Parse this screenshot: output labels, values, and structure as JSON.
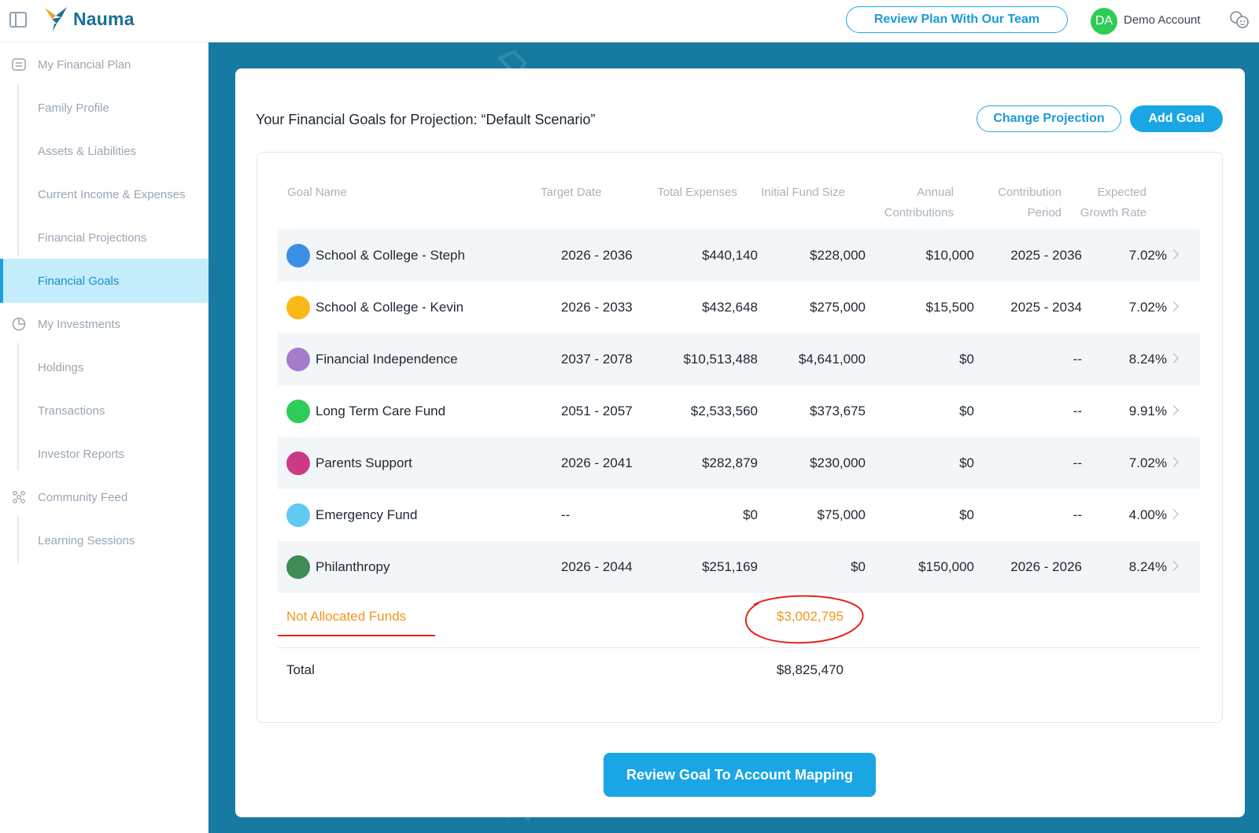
{
  "app": {
    "brand": "Nauma"
  },
  "header": {
    "review_button": "Review Plan With Our Team",
    "avatar_initials": "DA",
    "account_name": "Demo Account"
  },
  "sidebar": {
    "items": [
      {
        "label": "My Financial Plan",
        "icon": "plan-icon"
      },
      {
        "label": "Family Profile"
      },
      {
        "label": "Assets & Liabilities"
      },
      {
        "label": "Current Income & Expenses"
      },
      {
        "label": "Financial Projections"
      },
      {
        "label": "Financial Goals",
        "active": true
      },
      {
        "label": "My Investments",
        "icon": "pie-chart-icon"
      },
      {
        "label": "Holdings"
      },
      {
        "label": "Transactions"
      },
      {
        "label": "Investor Reports"
      },
      {
        "label": "Community Feed",
        "icon": "community-icon"
      },
      {
        "label": "Learning Sessions"
      }
    ]
  },
  "main": {
    "title": "Your Financial Goals for Projection: “Default Scenario”",
    "change_projection": "Change Projection",
    "add_goal": "Add Goal",
    "columns": {
      "goal_name": "Goal Name",
      "target_date": "Target Date",
      "total_expenses": "Total Expenses",
      "initial_fund": "Initial Fund Size",
      "annual_1": "Annual",
      "annual_2": "Contributions",
      "period_1": "Contribution",
      "period_2": "Period",
      "growth_1": "Expected",
      "growth_2": "Growth Rate"
    },
    "goals": [
      {
        "name": "School & College - Steph",
        "color": "#3b8fe5",
        "target": "2026 - 2036",
        "expenses": "$440,140",
        "initial": "$228,000",
        "annual": "$10,000",
        "period": "2025 - 2036",
        "growth": "7.02%"
      },
      {
        "name": "School & College - Kevin",
        "color": "#fbb81a",
        "target": "2026 - 2033",
        "expenses": "$432,648",
        "initial": "$275,000",
        "annual": "$15,500",
        "period": "2025 - 2034",
        "growth": "7.02%"
      },
      {
        "name": "Financial Independence",
        "color": "#a57cc9",
        "target": "2037 - 2078",
        "expenses": "$10,513,488",
        "initial": "$4,641,000",
        "annual": "$0",
        "period": "--",
        "growth": "8.24%"
      },
      {
        "name": "Long Term Care Fund",
        "color": "#2ecc5a",
        "target": "2051 - 2057",
        "expenses": "$2,533,560",
        "initial": "$373,675",
        "annual": "$0",
        "period": "--",
        "growth": "9.91%"
      },
      {
        "name": "Parents Support",
        "color": "#cc3a86",
        "target": "2026 - 2041",
        "expenses": "$282,879",
        "initial": "$230,000",
        "annual": "$0",
        "period": "--",
        "growth": "7.02%"
      },
      {
        "name": "Emergency Fund",
        "color": "#62c9f2",
        "target": "--",
        "expenses": "$0",
        "initial": "$75,000",
        "annual": "$0",
        "period": "--",
        "growth": "4.00%"
      },
      {
        "name": "Philanthropy",
        "color": "#3f8c55",
        "target": "2026 - 2044",
        "expenses": "$251,169",
        "initial": "$0",
        "annual": "$150,000",
        "period": "2026 - 2026",
        "growth": "8.24%"
      }
    ],
    "not_allocated_label": "Not Allocated Funds",
    "not_allocated_value": "$3,002,795",
    "total_label": "Total",
    "total_value": "$8,825,470",
    "mapping_button": "Review Goal To Account Mapping"
  }
}
